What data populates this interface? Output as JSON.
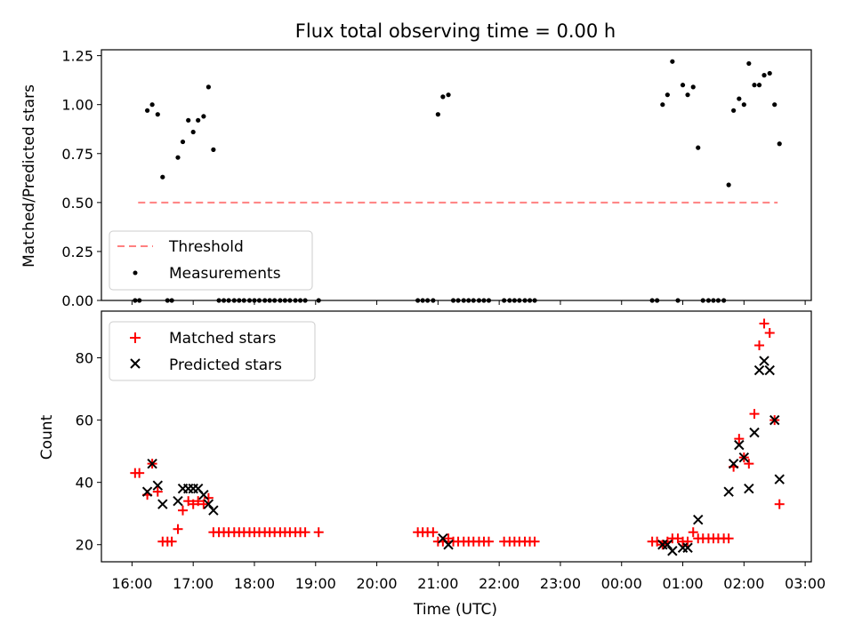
{
  "chart_data": [
    {
      "type": "scatter",
      "title": "Flux total observing time = 0.00 h",
      "ylabel": "Matched/Predicted stars",
      "ylim": [
        0,
        1.28
      ],
      "yticks": [
        "0.00",
        "0.25",
        "0.50",
        "0.75",
        "1.00",
        "1.25"
      ],
      "x_unit": "hours",
      "legend": {
        "position": "lower-left",
        "entries": [
          {
            "label": "Threshold",
            "style": "dashed-line",
            "color": "#ff8080"
          },
          {
            "label": "Measurements",
            "style": "dot",
            "color": "#000000"
          }
        ]
      },
      "threshold": {
        "name": "Threshold",
        "value": 0.5,
        "x_start": 16.1,
        "x_end": 26.55,
        "color": "#ff8080"
      },
      "series": [
        {
          "name": "Measurements",
          "marker": "dot",
          "color": "#000000",
          "points": [
            [
              16.05,
              0
            ],
            [
              16.12,
              0
            ],
            [
              16.25,
              0.97
            ],
            [
              16.33,
              1.0
            ],
            [
              16.42,
              0.95
            ],
            [
              16.5,
              0.63
            ],
            [
              16.58,
              0
            ],
            [
              16.65,
              0
            ],
            [
              16.75,
              0.73
            ],
            [
              16.83,
              0.81
            ],
            [
              16.92,
              0.92
            ],
            [
              17.0,
              0.86
            ],
            [
              17.08,
              0.92
            ],
            [
              17.17,
              0.94
            ],
            [
              17.25,
              1.09
            ],
            [
              17.33,
              0.77
            ],
            [
              17.42,
              0
            ],
            [
              17.5,
              0
            ],
            [
              17.58,
              0
            ],
            [
              17.67,
              0
            ],
            [
              17.75,
              0
            ],
            [
              17.83,
              0
            ],
            [
              17.92,
              0
            ],
            [
              18.0,
              0
            ],
            [
              18.08,
              0
            ],
            [
              18.17,
              0
            ],
            [
              18.25,
              0
            ],
            [
              18.33,
              0
            ],
            [
              18.42,
              0
            ],
            [
              18.5,
              0
            ],
            [
              18.58,
              0
            ],
            [
              18.67,
              0
            ],
            [
              18.75,
              0
            ],
            [
              18.83,
              0
            ],
            [
              19.05,
              0
            ],
            [
              20.67,
              0
            ],
            [
              20.75,
              0
            ],
            [
              20.83,
              0
            ],
            [
              20.92,
              0
            ],
            [
              21.0,
              0.95
            ],
            [
              21.08,
              1.04
            ],
            [
              21.17,
              1.05
            ],
            [
              21.25,
              0
            ],
            [
              21.33,
              0
            ],
            [
              21.42,
              0
            ],
            [
              21.5,
              0
            ],
            [
              21.58,
              0
            ],
            [
              21.67,
              0
            ],
            [
              21.75,
              0
            ],
            [
              21.83,
              0
            ],
            [
              22.08,
              0
            ],
            [
              22.17,
              0
            ],
            [
              22.25,
              0
            ],
            [
              22.33,
              0
            ],
            [
              22.42,
              0
            ],
            [
              22.5,
              0
            ],
            [
              22.58,
              0
            ],
            [
              24.5,
              0
            ],
            [
              24.58,
              0
            ],
            [
              24.67,
              1.0
            ],
            [
              24.75,
              1.05
            ],
            [
              24.83,
              1.22
            ],
            [
              24.92,
              0
            ],
            [
              25.0,
              1.1
            ],
            [
              25.08,
              1.05
            ],
            [
              25.17,
              1.09
            ],
            [
              25.25,
              0.78
            ],
            [
              25.33,
              0
            ],
            [
              25.42,
              0
            ],
            [
              25.5,
              0
            ],
            [
              25.58,
              0
            ],
            [
              25.67,
              0
            ],
            [
              25.75,
              0.59
            ],
            [
              25.83,
              0.97
            ],
            [
              25.92,
              1.03
            ],
            [
              26.0,
              1.0
            ],
            [
              26.08,
              1.21
            ],
            [
              26.17,
              1.1
            ],
            [
              26.25,
              1.1
            ],
            [
              26.33,
              1.15
            ],
            [
              26.42,
              1.16
            ],
            [
              26.5,
              1.0
            ],
            [
              26.58,
              0.8
            ]
          ]
        }
      ]
    },
    {
      "type": "scatter",
      "ylabel": "Count",
      "xlabel": "Time (UTC)",
      "ylim": [
        14.5,
        95
      ],
      "yticks": [
        "20",
        "40",
        "60",
        "80"
      ],
      "x_unit": "hours",
      "xlim": [
        15.5,
        27.1
      ],
      "xtick_labels": [
        "16:00",
        "17:00",
        "18:00",
        "19:00",
        "20:00",
        "21:00",
        "22:00",
        "23:00",
        "00:00",
        "01:00",
        "02:00",
        "03:00"
      ],
      "legend": {
        "position": "upper-left",
        "entries": [
          {
            "label": "Matched stars",
            "style": "plus",
            "color": "#ff0000"
          },
          {
            "label": "Predicted stars",
            "style": "cross",
            "color": "#000000"
          }
        ]
      },
      "series": [
        {
          "name": "Matched stars",
          "marker": "plus",
          "color": "#ff0000",
          "points": [
            [
              16.05,
              43
            ],
            [
              16.12,
              43
            ],
            [
              16.25,
              36
            ],
            [
              16.33,
              46
            ],
            [
              16.42,
              37
            ],
            [
              16.5,
              21
            ],
            [
              16.58,
              21
            ],
            [
              16.65,
              21
            ],
            [
              16.75,
              25
            ],
            [
              16.83,
              31
            ],
            [
              16.92,
              34
            ],
            [
              17.0,
              33
            ],
            [
              17.08,
              34
            ],
            [
              17.17,
              33
            ],
            [
              17.25,
              35
            ],
            [
              17.33,
              24
            ],
            [
              17.42,
              24
            ],
            [
              17.5,
              24
            ],
            [
              17.58,
              24
            ],
            [
              17.67,
              24
            ],
            [
              17.75,
              24
            ],
            [
              17.83,
              24
            ],
            [
              17.92,
              24
            ],
            [
              18.0,
              24
            ],
            [
              18.08,
              24
            ],
            [
              18.17,
              24
            ],
            [
              18.25,
              24
            ],
            [
              18.33,
              24
            ],
            [
              18.42,
              24
            ],
            [
              18.5,
              24
            ],
            [
              18.58,
              24
            ],
            [
              18.67,
              24
            ],
            [
              18.75,
              24
            ],
            [
              18.83,
              24
            ],
            [
              19.05,
              24
            ],
            [
              20.67,
              24
            ],
            [
              20.75,
              24
            ],
            [
              20.83,
              24
            ],
            [
              20.92,
              24
            ],
            [
              21.0,
              21
            ],
            [
              21.08,
              21
            ],
            [
              21.17,
              22
            ],
            [
              21.25,
              21
            ],
            [
              21.33,
              21
            ],
            [
              21.42,
              21
            ],
            [
              21.5,
              21
            ],
            [
              21.58,
              21
            ],
            [
              21.67,
              21
            ],
            [
              21.75,
              21
            ],
            [
              21.83,
              21
            ],
            [
              22.08,
              21
            ],
            [
              22.17,
              21
            ],
            [
              22.25,
              21
            ],
            [
              22.33,
              21
            ],
            [
              22.42,
              21
            ],
            [
              22.5,
              21
            ],
            [
              22.58,
              21
            ],
            [
              24.5,
              21
            ],
            [
              24.58,
              21
            ],
            [
              24.67,
              20
            ],
            [
              24.75,
              21
            ],
            [
              24.83,
              22
            ],
            [
              24.92,
              22
            ],
            [
              25.0,
              21
            ],
            [
              25.08,
              21
            ],
            [
              25.17,
              24
            ],
            [
              25.25,
              22
            ],
            [
              25.33,
              22
            ],
            [
              25.42,
              22
            ],
            [
              25.5,
              22
            ],
            [
              25.58,
              22
            ],
            [
              25.67,
              22
            ],
            [
              25.75,
              22
            ],
            [
              25.83,
              45
            ],
            [
              25.92,
              54
            ],
            [
              26.0,
              48
            ],
            [
              26.08,
              46
            ],
            [
              26.17,
              62
            ],
            [
              26.25,
              84
            ],
            [
              26.33,
              91
            ],
            [
              26.42,
              88
            ],
            [
              26.5,
              60
            ],
            [
              26.58,
              33
            ]
          ]
        },
        {
          "name": "Predicted stars",
          "marker": "cross",
          "color": "#000000",
          "points": [
            [
              16.25,
              37
            ],
            [
              16.33,
              46
            ],
            [
              16.42,
              39
            ],
            [
              16.5,
              33
            ],
            [
              16.75,
              34
            ],
            [
              16.83,
              38
            ],
            [
              16.92,
              38
            ],
            [
              17.0,
              38
            ],
            [
              17.08,
              38
            ],
            [
              17.17,
              36
            ],
            [
              17.25,
              33
            ],
            [
              17.33,
              31
            ],
            [
              21.08,
              22
            ],
            [
              21.17,
              20
            ],
            [
              24.67,
              20
            ],
            [
              24.75,
              20
            ],
            [
              24.83,
              18
            ],
            [
              25.0,
              19
            ],
            [
              25.08,
              19
            ],
            [
              25.25,
              28
            ],
            [
              25.75,
              37
            ],
            [
              25.83,
              46
            ],
            [
              25.92,
              52
            ],
            [
              26.0,
              48
            ],
            [
              26.08,
              38
            ],
            [
              26.17,
              56
            ],
            [
              26.25,
              76
            ],
            [
              26.33,
              79
            ],
            [
              26.42,
              76
            ],
            [
              26.5,
              60
            ],
            [
              26.58,
              41
            ]
          ]
        }
      ]
    }
  ]
}
